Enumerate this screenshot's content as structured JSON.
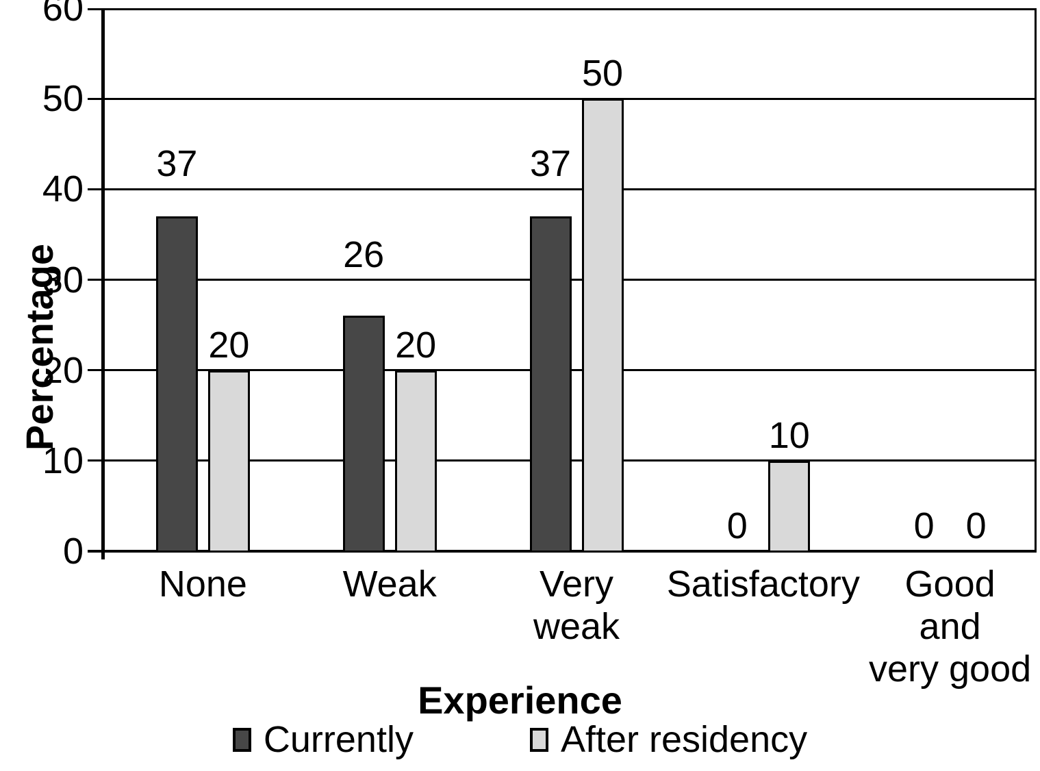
{
  "chart_data": {
    "type": "bar",
    "title": "",
    "xlabel": "Experience",
    "ylabel": "Percentage",
    "ylim": [
      0,
      60
    ],
    "yticks": [
      0,
      10,
      20,
      30,
      40,
      50,
      60
    ],
    "grid": true,
    "legend_position": "bottom",
    "categories": [
      "None",
      "Weak",
      "Very weak",
      "Satisfactory",
      "Good and very good"
    ],
    "category_label_lines": [
      [
        "None"
      ],
      [
        "Weak"
      ],
      [
        "Very",
        "weak"
      ],
      [
        "Satisfactory"
      ],
      [
        "Good",
        "and",
        "very good"
      ]
    ],
    "series": [
      {
        "name": "Currently",
        "color": "#474747",
        "values": [
          37,
          26,
          37,
          0,
          0
        ]
      },
      {
        "name": "After residency",
        "color": "#d9d9d9",
        "values": [
          20,
          20,
          50,
          10,
          0
        ]
      }
    ]
  },
  "colors": {
    "line": "#000000",
    "background": "#ffffff",
    "bar_dark": "#474747",
    "bar_light": "#d9d9d9"
  }
}
